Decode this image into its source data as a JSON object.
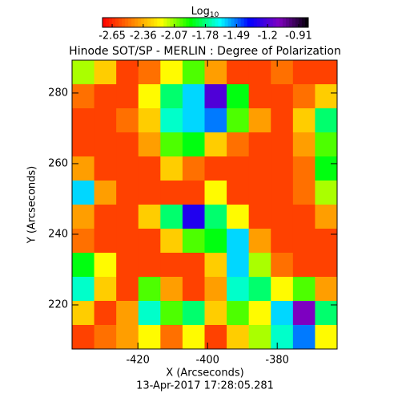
{
  "chart_data": {
    "type": "heatmap",
    "title": "Hinode SOT/SP - MERLIN : Degree of Polarization",
    "colorbar_label": {
      "text": "Log",
      "subscript": "10"
    },
    "xlabel": "X (Arcseconds)",
    "ylabel": "Y (Arcseconds)",
    "footer": "13-Apr-2017 17:28:05.281",
    "xlim": [
      -438.9,
      -362.8
    ],
    "xticks": [
      -420,
      -400,
      -380
    ],
    "ylim": [
      207.5,
      289.3
    ],
    "yticks": [
      220,
      240,
      260,
      280
    ],
    "zlim": [
      -2.74,
      -0.82
    ],
    "zticks": [
      -2.65,
      -2.36,
      -2.07,
      -1.78,
      -1.49,
      -1.2,
      -0.91
    ],
    "colormap": [
      "#ff0000",
      "#ff8000",
      "#ffff00",
      "#00ff00",
      "#00ffff",
      "#0000ff",
      "#8000c0",
      "#000000"
    ],
    "z": [
      [
        -2.1,
        -2.3,
        -2.6,
        -2.5,
        -2.2,
        -2.0,
        -2.4,
        -2.6,
        -2.6,
        -2.5,
        -2.6,
        -2.6
      ],
      [
        -2.5,
        -2.6,
        -2.6,
        -2.2,
        -1.8,
        -1.6,
        -1.2,
        -1.9,
        -2.6,
        -2.6,
        -2.5,
        -2.3
      ],
      [
        -2.6,
        -2.6,
        -2.5,
        -2.3,
        -1.7,
        -1.6,
        -1.5,
        -2.0,
        -2.4,
        -2.6,
        -2.3,
        -1.8
      ],
      [
        -2.6,
        -2.6,
        -2.6,
        -2.4,
        -2.0,
        -1.9,
        -2.3,
        -2.5,
        -2.6,
        -2.6,
        -2.4,
        -2.0
      ],
      [
        -2.4,
        -2.6,
        -2.6,
        -2.6,
        -2.3,
        -2.5,
        -2.6,
        -2.6,
        -2.6,
        -2.6,
        -2.5,
        -1.9
      ],
      [
        -1.6,
        -2.4,
        -2.6,
        -2.6,
        -2.6,
        -2.6,
        -2.2,
        -2.6,
        -2.6,
        -2.6,
        -2.5,
        -2.1
      ],
      [
        -2.4,
        -2.6,
        -2.6,
        -2.3,
        -1.8,
        -1.3,
        -1.8,
        -2.2,
        -2.6,
        -2.6,
        -2.6,
        -2.4
      ],
      [
        -2.5,
        -2.6,
        -2.6,
        -2.6,
        -2.3,
        -2.0,
        -1.9,
        -1.6,
        -2.4,
        -2.6,
        -2.6,
        -2.6
      ],
      [
        -1.9,
        -2.2,
        -2.6,
        -2.6,
        -2.6,
        -2.6,
        -2.3,
        -1.6,
        -2.1,
        -2.5,
        -2.6,
        -2.6
      ],
      [
        -1.7,
        -2.3,
        -2.6,
        -2.0,
        -2.4,
        -2.6,
        -2.4,
        -1.7,
        -1.8,
        -2.2,
        -2.0,
        -2.4
      ],
      [
        -2.3,
        -2.6,
        -2.4,
        -1.7,
        -2.0,
        -1.8,
        -2.3,
        -2.0,
        -2.2,
        -1.6,
        -1.1,
        -1.8
      ],
      [
        -2.6,
        -2.5,
        -2.4,
        -2.2,
        -2.5,
        -2.2,
        -2.6,
        -2.3,
        -2.1,
        -1.7,
        -1.5,
        -2.2
      ]
    ]
  }
}
